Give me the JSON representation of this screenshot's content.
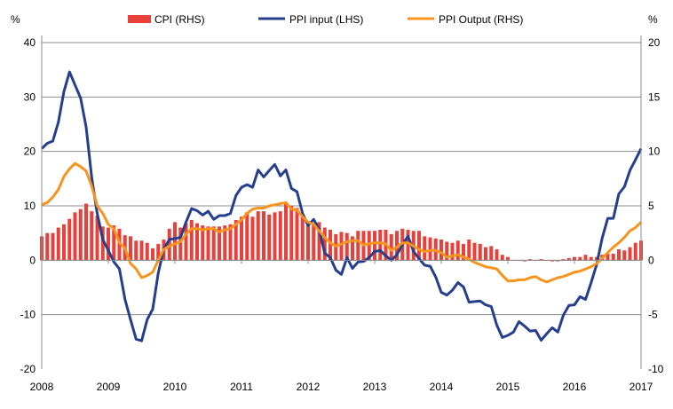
{
  "chart_data": {
    "type": "bar+line",
    "title": "",
    "left_axis": {
      "label": "%",
      "min": -20,
      "max": 40,
      "ticks": [
        -20,
        -10,
        0,
        10,
        20,
        30,
        40
      ]
    },
    "right_axis": {
      "label": "%",
      "min": -10,
      "max": 20,
      "ticks": [
        -10,
        -5,
        0,
        5,
        10,
        15,
        20
      ]
    },
    "x_ticks": [
      "2008",
      "2009",
      "2010",
      "2011",
      "2012",
      "2013",
      "2014",
      "2015",
      "2016",
      "2017"
    ],
    "x_range_months": [
      0,
      108
    ],
    "legend_position": "top",
    "grid": true,
    "colors": {
      "cpi": "#e8403a",
      "ppi_input": "#253f8e",
      "ppi_output": "#f7941d",
      "grid": "#8c8c8c"
    },
    "series": [
      {
        "name": "CPI (RHS)",
        "kind": "bar",
        "axis": "right",
        "start": "Jan 2008",
        "values": [
          2.2,
          2.5,
          2.5,
          3.0,
          3.3,
          3.8,
          4.4,
          4.7,
          5.2,
          4.5,
          4.1,
          3.1,
          3.0,
          3.2,
          2.9,
          2.3,
          2.2,
          1.8,
          1.8,
          1.6,
          1.1,
          1.5,
          1.9,
          2.9,
          3.5,
          3.0,
          3.4,
          3.7,
          3.4,
          3.2,
          3.1,
          3.1,
          3.1,
          3.2,
          3.3,
          3.7,
          4.0,
          4.4,
          4.0,
          4.5,
          4.5,
          4.2,
          4.4,
          4.5,
          5.2,
          5.0,
          4.8,
          4.2,
          3.6,
          3.4,
          3.5,
          3.0,
          2.8,
          2.4,
          2.6,
          2.5,
          2.2,
          2.7,
          2.7,
          2.7,
          2.7,
          2.8,
          2.8,
          2.4,
          2.7,
          2.9,
          2.8,
          2.7,
          2.7,
          2.2,
          2.1,
          2.0,
          1.9,
          1.7,
          1.6,
          1.8,
          1.5,
          1.9,
          1.6,
          1.5,
          1.2,
          1.3,
          1.0,
          0.5,
          0.3,
          0.0,
          0.0,
          -0.1,
          0.1,
          0.0,
          0.1,
          0.0,
          -0.1,
          -0.1,
          0.1,
          0.2,
          0.3,
          0.3,
          0.5,
          0.3,
          0.3,
          0.5,
          0.6,
          0.6,
          1.0,
          0.9,
          1.2,
          1.6,
          1.8
        ]
      },
      {
        "name": "PPI input (LHS)",
        "kind": "line",
        "axis": "left",
        "start": "Jan 2008",
        "values": [
          20.5,
          21.5,
          21.9,
          25.4,
          31,
          34.6,
          32.2,
          29.8,
          24.5,
          15.2,
          8.6,
          3.8,
          1.8,
          -0.3,
          -1.6,
          -7.2,
          -10.9,
          -14.5,
          -14.8,
          -10.9,
          -9,
          -2.3,
          2.1,
          3.8,
          4.0,
          4.2,
          7,
          9.5,
          9.1,
          8.3,
          9,
          7.5,
          8.2,
          8.2,
          8.6,
          11.9,
          13.4,
          13.9,
          13.4,
          16.6,
          15.3,
          16.5,
          17.6,
          15.5,
          16.6,
          13.2,
          12.6,
          8.6,
          6.4,
          7.5,
          5.7,
          1.3,
          0.5,
          -1.8,
          -2.6,
          0.5,
          -1.5,
          -0.3,
          -0.2,
          0.5,
          1.6,
          1.8,
          0.8,
          0,
          1,
          2.9,
          4.4,
          1.6,
          0.3,
          -0.9,
          -1.1,
          -3.1,
          -5.9,
          -6.4,
          -5.5,
          -4.1,
          -4.9,
          -7.7,
          -7.6,
          -7.5,
          -8.2,
          -8.5,
          -11.9,
          -14.2,
          -13.8,
          -13.2,
          -11.3,
          -12.1,
          -13,
          -12.9,
          -14.7,
          -13.5,
          -12.4,
          -13.2,
          -10.1,
          -8.3,
          -8.2,
          -6.7,
          -7.2,
          -4.1,
          -0.8,
          4.1,
          7.7,
          7.7,
          12.2,
          13.5,
          16.5,
          18.5,
          20.5
        ]
      },
      {
        "name": "PPI Output (RHS)",
        "kind": "line",
        "axis": "right",
        "start": "Jan 2008",
        "values": [
          5.1,
          5.3,
          5.8,
          6.5,
          7.7,
          8.4,
          8.9,
          8.6,
          8.2,
          6.8,
          5.0,
          4.3,
          3.3,
          2.9,
          1.6,
          1.1,
          -0.3,
          -0.8,
          -1.6,
          -1.4,
          -1.1,
          0,
          1.0,
          1.3,
          1.5,
          1.7,
          2.4,
          2.9,
          2.9,
          2.8,
          2.9,
          2.9,
          2.6,
          2.8,
          2.9,
          3.3,
          3.7,
          4.3,
          4.7,
          4.8,
          4.8,
          5.0,
          5.1,
          5.2,
          5.3,
          4.7,
          4.6,
          4.0,
          3.5,
          3.3,
          2.7,
          2.1,
          1.6,
          1.3,
          1.5,
          1.7,
          1.8,
          1.8,
          1.4,
          1.5,
          1.6,
          1.6,
          1.5,
          0.9,
          1.2,
          1.6,
          1.6,
          1.3,
          1.0,
          0.8,
          0.9,
          0.9,
          0.7,
          0.3,
          0.4,
          0.5,
          0.3,
          0.1,
          -0.2,
          -0.4,
          -0.6,
          -0.7,
          -0.8,
          -1.4,
          -1.9,
          -1.9,
          -1.8,
          -1.8,
          -1.6,
          -1.5,
          -1.8,
          -2.0,
          -1.8,
          -1.6,
          -1.5,
          -1.3,
          -1.1,
          -1.0,
          -0.8,
          -0.6,
          -0.3,
          0.2,
          0.7,
          1.2,
          1.6,
          2.1,
          2.7,
          3.0,
          3.5
        ]
      }
    ]
  }
}
